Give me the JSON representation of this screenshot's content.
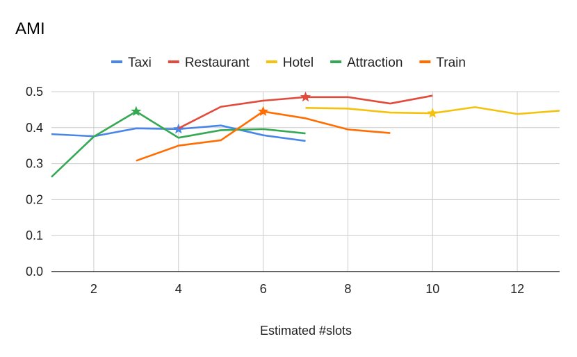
{
  "chart_data": {
    "type": "line",
    "title": "AMI",
    "xlabel": "Estimated #slots",
    "ylabel": "",
    "xlim": [
      1,
      13
    ],
    "ylim": [
      0,
      0.5
    ],
    "xticks": [
      2,
      4,
      6,
      8,
      10,
      12
    ],
    "xtick_labels": [
      "2",
      "4",
      "6",
      "8",
      "10",
      "12"
    ],
    "yticks": [
      0,
      0.1,
      0.2,
      0.3,
      0.4,
      0.5
    ],
    "ytick_labels": [
      "0.0",
      "0.1",
      "0.2",
      "0.3",
      "0.4",
      "0.5"
    ],
    "grid": true,
    "legend_position": "top",
    "series": [
      {
        "name": "Taxi",
        "color": "#4a86e8",
        "x": [
          1,
          2,
          3,
          4,
          5,
          6,
          7
        ],
        "y": [
          0.382,
          0.376,
          0.398,
          0.396,
          0.406,
          0.379,
          0.363
        ],
        "star": [
          4,
          0.396
        ]
      },
      {
        "name": "Restaurant",
        "color": "#e24a3b",
        "x": [
          4,
          5,
          6,
          7,
          8,
          9,
          10
        ],
        "y": [
          0.398,
          0.458,
          0.475,
          0.485,
          0.485,
          0.467,
          0.489
        ],
        "star": [
          7,
          0.485
        ]
      },
      {
        "name": "Hotel",
        "color": "#f4c20d",
        "x": [
          7,
          8,
          9,
          10,
          11,
          12,
          13
        ],
        "y": [
          0.455,
          0.453,
          0.442,
          0.44,
          0.457,
          0.438,
          0.447
        ],
        "star": [
          10,
          0.44
        ]
      },
      {
        "name": "Attraction",
        "color": "#34a853",
        "x": [
          1,
          2,
          3,
          4,
          5,
          6,
          7
        ],
        "y": [
          0.263,
          0.375,
          0.445,
          0.372,
          0.393,
          0.396,
          0.384
        ],
        "star": [
          3,
          0.445
        ]
      },
      {
        "name": "Train",
        "color": "#ff6d01",
        "x": [
          3,
          4,
          5,
          6,
          7,
          8,
          9
        ],
        "y": [
          0.308,
          0.35,
          0.365,
          0.445,
          0.426,
          0.395,
          0.385
        ],
        "star": [
          6,
          0.445
        ]
      }
    ]
  }
}
